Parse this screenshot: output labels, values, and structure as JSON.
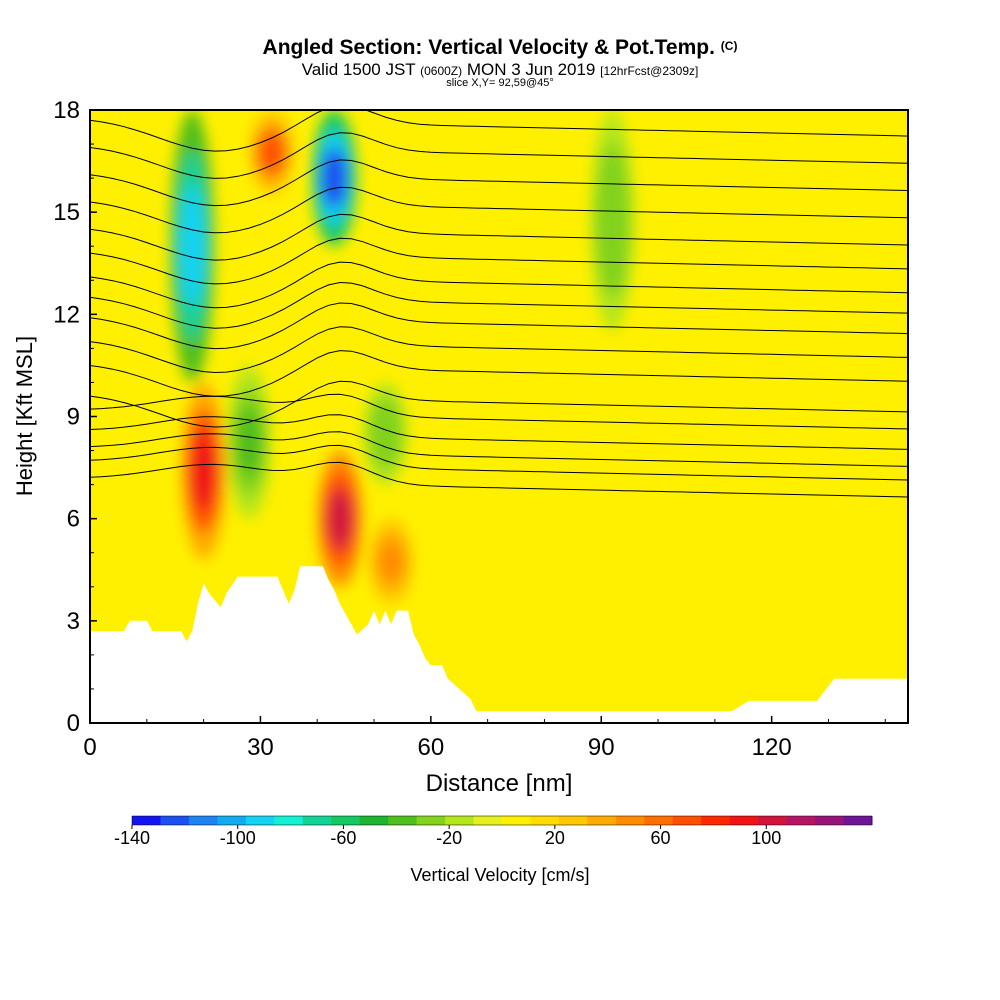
{
  "title": {
    "main": "Angled Section: Vertical Velocity & Pot.Temp.",
    "mark": "(C)",
    "valid_prefix": "Valid 1500 JST",
    "valid_utc": "(0600Z)",
    "valid_date": "MON 3 Jun 2019",
    "forecast": "[12hrFcst@2309z]",
    "slice": "slice X,Y= 92,59@45°"
  },
  "chart_data": {
    "type": "heatmap",
    "title": "Angled Section: Vertical Velocity & Pot.Temp.",
    "xlabel": "Distance [nm]",
    "ylabel": "Height [Kft MSL]",
    "xlim": [
      0,
      144
    ],
    "ylim": [
      0,
      18
    ],
    "x_ticks": [
      0,
      30,
      60,
      90,
      120
    ],
    "y_ticks": [
      0,
      3,
      6,
      9,
      12,
      15,
      18
    ],
    "colorbar": {
      "label": "Vertical Velocity [cm/s]",
      "range": [
        -140,
        140
      ],
      "tick_values": [
        -140,
        -100,
        -60,
        -20,
        20,
        60,
        100
      ],
      "tick_labels": [
        "-140",
        "-100",
        "-60",
        "-20",
        "20",
        "60",
        "100"
      ],
      "colors": [
        "#1414f0",
        "#1e50f0",
        "#1e82f0",
        "#14aaf0",
        "#14d2f0",
        "#14f0d2",
        "#14d296",
        "#14c864",
        "#1eb432",
        "#50be1e",
        "#82d21e",
        "#b4e61e",
        "#e6f01e",
        "#fff000",
        "#ffdc00",
        "#ffc800",
        "#ffaa00",
        "#ff8c00",
        "#ff6e00",
        "#ff5000",
        "#ff2800",
        "#f01414",
        "#d2143c",
        "#b41464",
        "#961478",
        "#6e1496"
      ]
    },
    "velocity_features": [
      {
        "kind": "updraft",
        "x": 20,
        "y_range": [
          4.8,
          10
        ],
        "peak_cm_s": 90
      },
      {
        "kind": "updraft",
        "x": 32,
        "y_range": [
          15.5,
          18
        ],
        "peak_cm_s": 70
      },
      {
        "kind": "updraft",
        "x": 44,
        "y_range": [
          4,
          8
        ],
        "peak_cm_s": 100
      },
      {
        "kind": "updraft",
        "x": 53,
        "y_range": [
          3.5,
          6
        ],
        "peak_cm_s": 50
      },
      {
        "kind": "downdraft",
        "x": 18,
        "y_range": [
          10,
          18
        ],
        "peak_cm_s": -90
      },
      {
        "kind": "downdraft",
        "x": 43,
        "y_range": [
          14,
          18
        ],
        "peak_cm_s": -120
      },
      {
        "kind": "downdraft",
        "x": 28,
        "y_range": [
          6,
          10.5
        ],
        "peak_cm_s": -40
      },
      {
        "kind": "downdraft",
        "x": 92,
        "y_range": [
          11.5,
          18
        ],
        "peak_cm_s": -30
      },
      {
        "kind": "downdraft",
        "x": 52,
        "y_range": [
          7,
          10
        ],
        "peak_cm_s": -30
      }
    ],
    "isentropes_theta_y_at_x100": [
      6.8,
      7.3,
      7.7,
      8.2,
      8.8,
      9.3,
      10.2,
      10.9,
      11.6,
      12.2,
      12.8,
      13.5,
      14.2,
      15.0,
      15.8,
      16.6,
      17.4
    ],
    "terrain": {
      "x": [
        0,
        6,
        7,
        10,
        11,
        16,
        17,
        18,
        19,
        20,
        21,
        23,
        24,
        26,
        27,
        33,
        34,
        35,
        36,
        37,
        41,
        42,
        43,
        44,
        45,
        46,
        47,
        49,
        50,
        51,
        52,
        53,
        54,
        56,
        57,
        58,
        59,
        60,
        62,
        63,
        65,
        67,
        68,
        73,
        75,
        80,
        113,
        116,
        128,
        131,
        144
      ],
      "y": [
        2.7,
        2.7,
        3,
        3,
        2.7,
        2.7,
        2.4,
        2.7,
        3.5,
        4.1,
        3.8,
        3.4,
        3.8,
        4.3,
        4.3,
        4.3,
        3.9,
        3.5,
        3.9,
        4.6,
        4.6,
        4.2,
        3.9,
        3.5,
        3.2,
        2.9,
        2.6,
        2.9,
        3.3,
        2.9,
        3.3,
        2.9,
        3.3,
        3.3,
        2.6,
        2.3,
        1.9,
        1.7,
        1.7,
        1.3,
        1.0,
        0.7,
        0.35,
        0.35,
        0.35,
        0.35,
        0.35,
        0.65,
        0.65,
        1.3,
        1.3
      ]
    }
  }
}
